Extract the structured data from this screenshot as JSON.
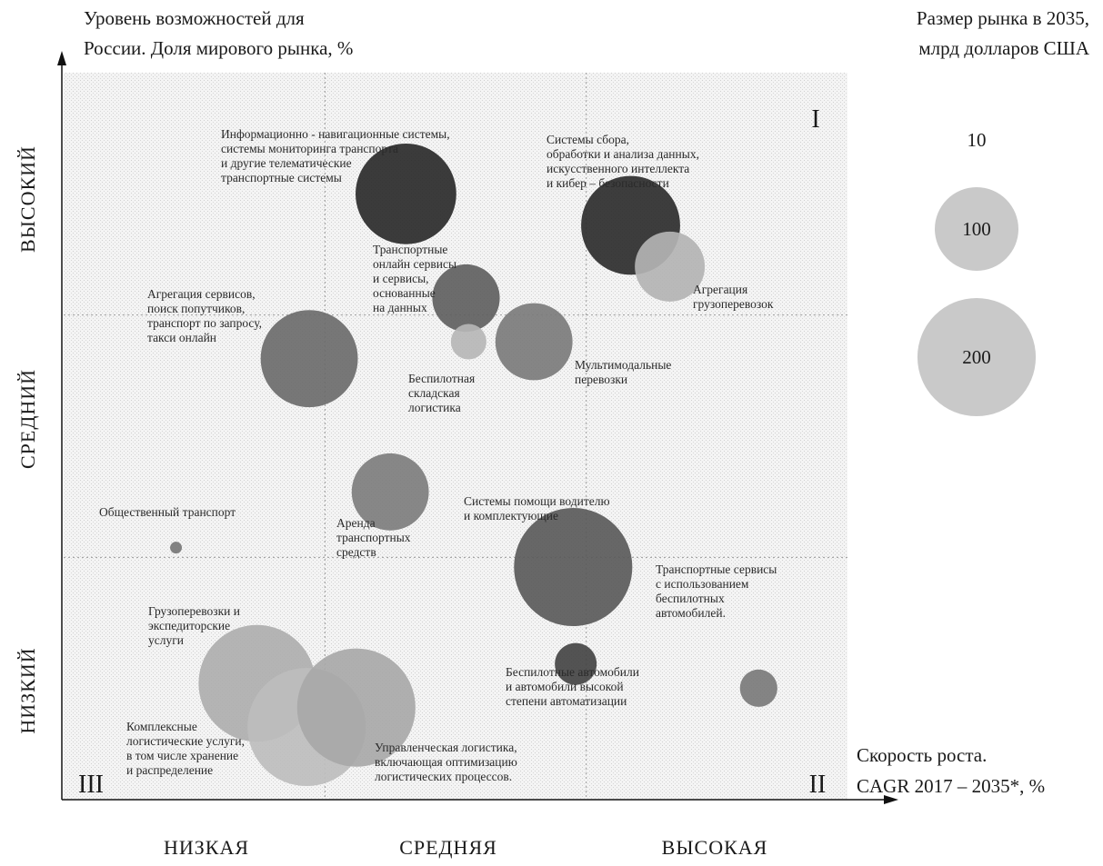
{
  "chart_data": {
    "type": "scatter",
    "y_title": [
      "Уровень возможностей для",
      "России. Доля мирового рынка, %"
    ],
    "size_title": [
      "Размер рынка в 2035,",
      "млрд долларов США"
    ],
    "x_title": [
      "Скорость роста.",
      "CAGR 2017 – 2035*, %"
    ],
    "x_categories": [
      "НИЗКАЯ",
      "СРЕДНЯЯ",
      "ВЫСОКАЯ"
    ],
    "y_categories": [
      "НИЗКИЙ",
      "СРЕДНИЙ",
      "ВЫСОКИЙ"
    ],
    "quadrants": [
      "I",
      "II",
      "III"
    ],
    "size_legend": [
      10,
      100,
      200
    ],
    "grid": true,
    "points": [
      {
        "label": [
          "Информационно - навигационные системы,",
          "системы мониторинга транспорта",
          "и другие телематические",
          "транспортные системы"
        ],
        "x": 1.31,
        "y": 2.5,
        "size": 145,
        "shade": "#2a2a2a"
      },
      {
        "label": [
          "Системы сбора,",
          "обработки и анализа данных,",
          "искусственного интеллекта",
          "и кибер – безопасности"
        ],
        "x": 2.17,
        "y": 2.37,
        "size": 140,
        "shade": "#2d2d2d"
      },
      {
        "label": [
          "Агрегация",
          "грузоперевозок"
        ],
        "x": 2.32,
        "y": 2.2,
        "size": 70,
        "shade": "#b3b3b3"
      },
      {
        "label": [
          "Транспортные",
          "онлайн сервисы",
          "и сервисы,",
          "основанные",
          "на данных"
        ],
        "x": 1.54,
        "y": 2.07,
        "size": 65,
        "shade": "#606060"
      },
      {
        "label": [
          "Агрегация сервисов,",
          "поиск попутчиков,",
          "транспорт по запросу,",
          "такси онлайн"
        ],
        "x": 0.94,
        "y": 1.82,
        "size": 135,
        "shade": "#6b6b6b"
      },
      {
        "label": [
          "Беспилотная",
          "складская",
          "логистика"
        ],
        "x": 1.55,
        "y": 1.89,
        "size": 18,
        "shade": "#b6b6b6"
      },
      {
        "label": [
          "Мультимодальные",
          "перевозки"
        ],
        "x": 1.8,
        "y": 1.89,
        "size": 85,
        "shade": "#7b7b7b"
      },
      {
        "label": [
          "Аренда",
          "транспортных",
          "средств"
        ],
        "x": 1.25,
        "y": 1.27,
        "size": 85,
        "shade": "#7d7d7d"
      },
      {
        "label": [
          "Общественный транспорт"
        ],
        "x": 0.43,
        "y": 1.04,
        "size": 2,
        "shade": "#777777"
      },
      {
        "label": [
          "Системы помощи водителю",
          "и комплектующие"
        ],
        "x": 1.95,
        "y": 0.96,
        "size": 200,
        "shade": "#5a5a5a"
      },
      {
        "label": [
          "Транспортные сервисы",
          "с использованием",
          "беспилотных",
          "автомобилей."
        ],
        "x": 2.66,
        "y": 0.46,
        "size": 20,
        "shade": "#7a7a7a"
      },
      {
        "label": [
          "Беспилотные автомобили",
          "и автомобили высокой",
          "степени автоматизации"
        ],
        "x": 1.96,
        "y": 0.56,
        "size": 25,
        "shade": "#444444"
      },
      {
        "label": [
          "Грузоперевозки и",
          "экспедиторские",
          "услуги"
        ],
        "x": 0.74,
        "y": 0.48,
        "size": 195,
        "shade": "#aeaeae"
      },
      {
        "label": [
          "Комплексные",
          "логистические услуги,",
          "в том числе хранение",
          "и распределение"
        ],
        "x": 0.93,
        "y": 0.3,
        "size": 200,
        "shade": "#bdbdbd"
      },
      {
        "label": [
          "Управленческая логистика,",
          "включающая оптимизацию",
          "логистических процессов."
        ],
        "x": 1.12,
        "y": 0.38,
        "size": 200,
        "shade": "#a8a8a8"
      }
    ]
  }
}
